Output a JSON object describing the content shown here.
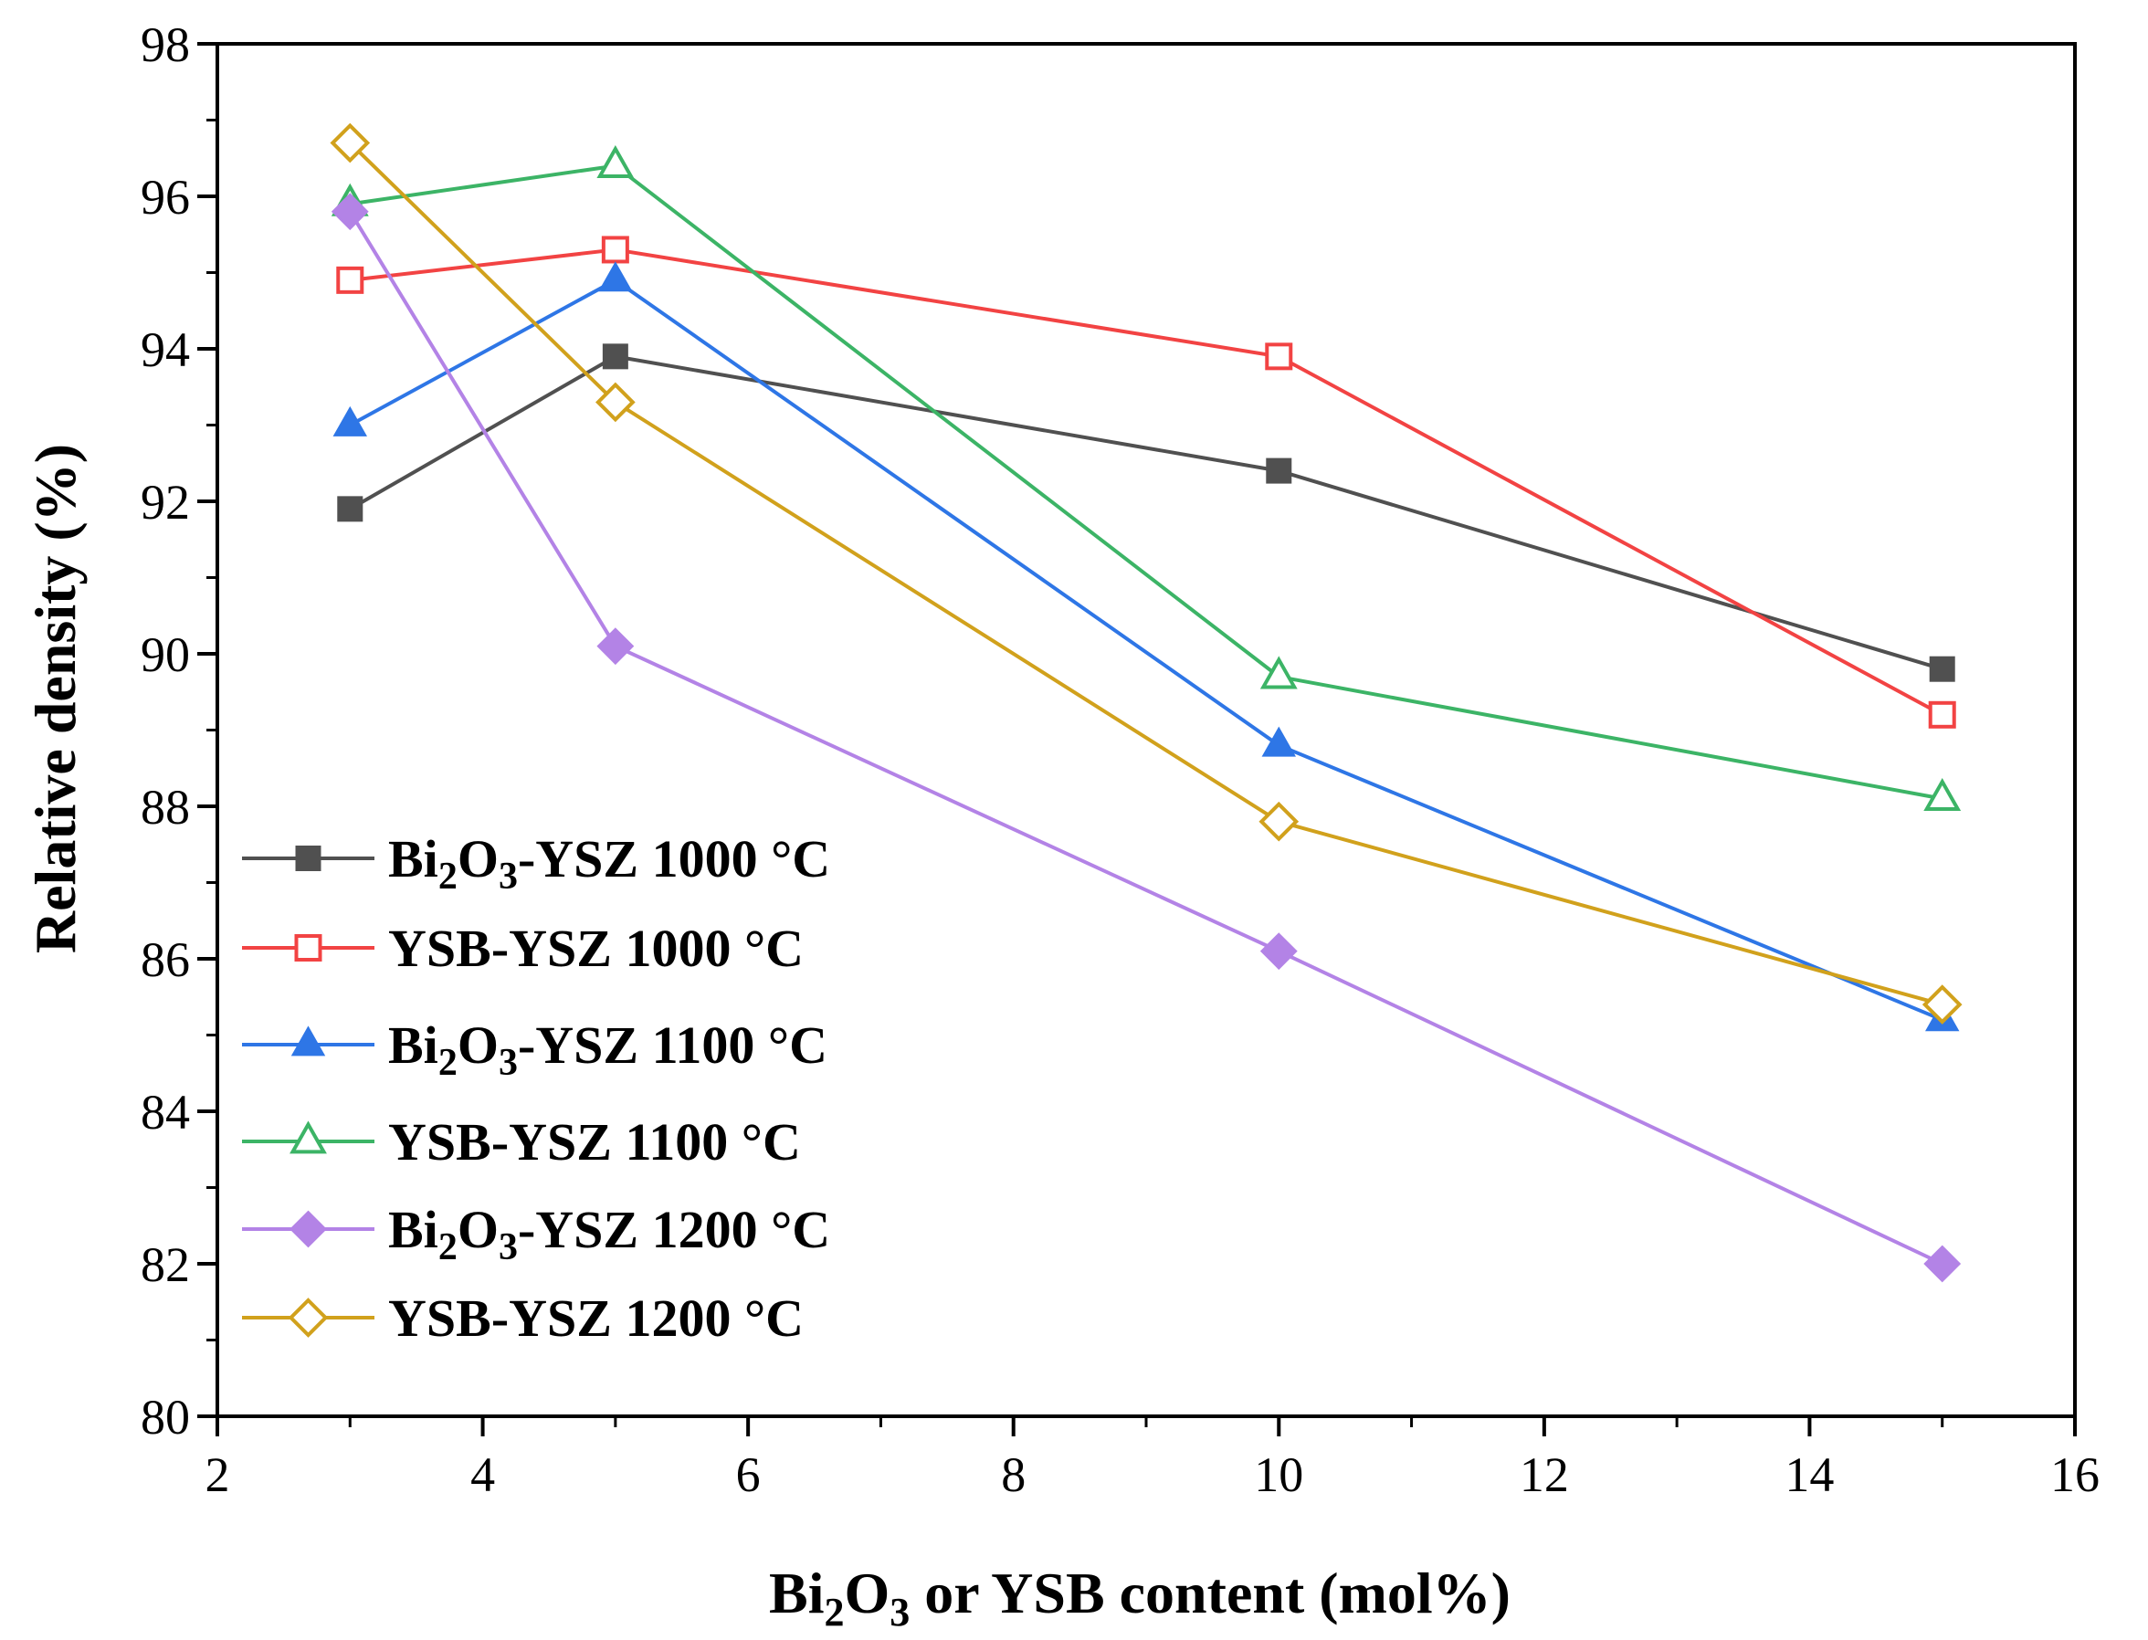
{
  "chart_data": {
    "type": "line",
    "title": "",
    "xlabel": {
      "pre": "Bi",
      "sub1": "2",
      "mid": "O",
      "sub2": "3",
      "post": " or YSB content (mol%)"
    },
    "ylabel": "Relative density (%)",
    "xlim": [
      2,
      16
    ],
    "ylim": [
      80,
      98
    ],
    "x_ticks": [
      2,
      4,
      6,
      8,
      10,
      12,
      14,
      16
    ],
    "y_ticks": [
      80,
      82,
      84,
      86,
      88,
      90,
      92,
      94,
      96,
      98
    ],
    "x_tick_labels": [
      "2",
      "4",
      "6",
      "8",
      "10",
      "12",
      "14",
      "16"
    ],
    "y_tick_labels": [
      "80",
      "82",
      "84",
      "86",
      "88",
      "90",
      "92",
      "94",
      "96",
      "98"
    ],
    "grid": false,
    "legend_position": "bottom-left",
    "x": [
      3,
      5,
      10,
      15
    ],
    "series": [
      {
        "name": "Bi2O3-YSZ 1000 °C",
        "label": {
          "pre": "Bi",
          "sub1": "2",
          "mid": "O",
          "sub2": "3",
          "post": "-YSZ 1000 °C"
        },
        "values": [
          91.9,
          93.9,
          92.4,
          89.8
        ],
        "color": "#505050",
        "marker": "square",
        "filled": true
      },
      {
        "name": "YSB-YSZ 1000 °C",
        "label": {
          "pre": "YSB-YSZ 1000 °C",
          "sub1": "",
          "mid": "",
          "sub2": "",
          "post": ""
        },
        "values": [
          94.9,
          95.3,
          93.9,
          89.2
        ],
        "color": "#f24343",
        "marker": "square",
        "filled": false
      },
      {
        "name": "Bi2O3-YSZ 1100 °C",
        "label": {
          "pre": "Bi",
          "sub1": "2",
          "mid": "O",
          "sub2": "3",
          "post": "-YSZ 1100 °C"
        },
        "values": [
          93.0,
          94.9,
          88.8,
          85.2
        ],
        "color": "#2e76e6",
        "marker": "triangle",
        "filled": true
      },
      {
        "name": "YSB-YSZ 1100 °C",
        "label": {
          "pre": "YSB-YSZ 1100 °C",
          "sub1": "",
          "mid": "",
          "sub2": "",
          "post": ""
        },
        "values": [
          95.9,
          96.4,
          89.7,
          88.1
        ],
        "color": "#3cb466",
        "marker": "triangle",
        "filled": false
      },
      {
        "name": "Bi2O3-YSZ 1200 °C",
        "label": {
          "pre": "Bi",
          "sub1": "2",
          "mid": "O",
          "sub2": "3",
          "post": "-YSZ 1200 °C"
        },
        "values": [
          95.8,
          90.1,
          86.1,
          82.0
        ],
        "color": "#b383e6",
        "marker": "diamond",
        "filled": true
      },
      {
        "name": "YSB-YSZ 1200 °C",
        "label": {
          "pre": "YSB-YSZ 1200 °C",
          "sub1": "",
          "mid": "",
          "sub2": "",
          "post": ""
        },
        "values": [
          96.7,
          93.3,
          87.8,
          85.4
        ],
        "color": "#d1a11c",
        "marker": "diamond",
        "filled": false
      }
    ]
  }
}
